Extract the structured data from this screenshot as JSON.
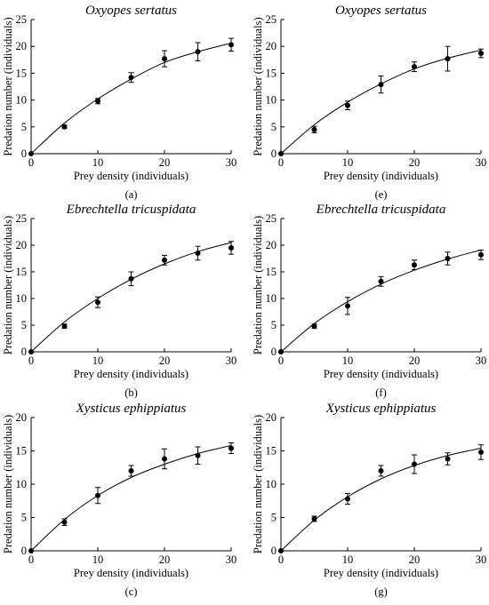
{
  "chart_data": [
    {
      "type": "scatter",
      "panel": "(a)",
      "title": "Oxyopes sertatus",
      "xlabel": "Prey density (individuals)",
      "ylabel": "Predation number (individuals)",
      "xlim": [
        0,
        30
      ],
      "ylim": [
        0,
        25
      ],
      "xticks": [
        0,
        10,
        20,
        30
      ],
      "yticks": [
        0,
        5,
        10,
        15,
        20,
        25
      ],
      "x": [
        0,
        5,
        10,
        15,
        20,
        25,
        30
      ],
      "y": [
        0,
        5.0,
        9.8,
        14.2,
        17.7,
        19.0,
        20.3
      ],
      "err": [
        0,
        0.3,
        0.5,
        0.9,
        1.5,
        1.7,
        1.2
      ],
      "fit": [
        0.0,
        5.7,
        10.2,
        13.9,
        17.0,
        19.0,
        20.6
      ]
    },
    {
      "type": "scatter",
      "panel": "(e)",
      "title": "Oxyopes sertatus",
      "xlabel": "Prey density (individuals)",
      "ylabel": "Predation number (individuals)",
      "xlim": [
        0,
        30
      ],
      "ylim": [
        0,
        25
      ],
      "xticks": [
        0,
        10,
        20,
        30
      ],
      "yticks": [
        0,
        5,
        10,
        15,
        20,
        25
      ],
      "x": [
        0,
        5,
        10,
        15,
        20,
        25,
        30
      ],
      "y": [
        0,
        4.5,
        9.0,
        12.9,
        16.2,
        17.7,
        18.7
      ],
      "err": [
        0,
        0.6,
        0.8,
        1.6,
        0.9,
        2.3,
        0.8
      ],
      "fit": [
        0.0,
        5.4,
        9.6,
        13.0,
        15.8,
        17.8,
        19.3
      ]
    },
    {
      "type": "scatter",
      "panel": "(b)",
      "title": "Ebrechtella tricuspidata",
      "xlabel": "Prey density (individuals)",
      "ylabel": "Predation number (individuals)",
      "xlim": [
        0,
        30
      ],
      "ylim": [
        0,
        25
      ],
      "xticks": [
        0,
        10,
        20,
        30
      ],
      "yticks": [
        0,
        5,
        10,
        15,
        20,
        25
      ],
      "x": [
        0,
        5,
        10,
        15,
        20,
        25,
        30
      ],
      "y": [
        0,
        4.8,
        9.3,
        13.7,
        17.2,
        18.5,
        19.5
      ],
      "err": [
        0,
        0.4,
        1.0,
        1.3,
        0.9,
        1.3,
        1.2
      ],
      "fit": [
        0.0,
        5.6,
        10.0,
        13.6,
        16.5,
        18.8,
        20.5
      ]
    },
    {
      "type": "scatter",
      "panel": "(f)",
      "title": "Ebrechtella tricuspidata",
      "xlabel": "Prey density (individuals)",
      "ylabel": "Predation number (individuals)",
      "xlim": [
        0,
        30
      ],
      "ylim": [
        0,
        25
      ],
      "xticks": [
        0,
        10,
        20,
        30
      ],
      "yticks": [
        0,
        5,
        10,
        15,
        20,
        25
      ],
      "x": [
        0,
        5,
        10,
        15,
        20,
        25,
        30
      ],
      "y": [
        0,
        4.8,
        8.6,
        13.2,
        16.3,
        17.5,
        18.2
      ],
      "err": [
        0,
        0.4,
        1.6,
        0.9,
        0.9,
        1.2,
        0.9
      ],
      "fit": [
        0.0,
        5.3,
        9.4,
        12.7,
        15.3,
        17.4,
        19.1
      ]
    },
    {
      "type": "scatter",
      "panel": "(c)",
      "title": "Xysticus ephippiatus",
      "xlabel": "Prey density (individuals)",
      "ylabel": "Predation number (individuals)",
      "xlim": [
        0,
        30
      ],
      "ylim": [
        0,
        20
      ],
      "xticks": [
        0,
        10,
        20,
        30
      ],
      "yticks": [
        0,
        5,
        10,
        15,
        20
      ],
      "x": [
        0,
        5,
        10,
        15,
        20,
        25,
        30
      ],
      "y": [
        0,
        4.3,
        8.3,
        12.0,
        13.8,
        14.3,
        15.4
      ],
      "err": [
        0,
        0.5,
        1.2,
        0.8,
        1.5,
        1.3,
        0.8
      ],
      "fit": [
        0.0,
        4.7,
        8.3,
        11.0,
        13.0,
        14.6,
        15.8
      ]
    },
    {
      "type": "scatter",
      "panel": "(g)",
      "title": "Xysticus ephippiatus",
      "xlabel": "Prey density (individuals)",
      "ylabel": "Predation number (individuals)",
      "xlim": [
        0,
        30
      ],
      "ylim": [
        0,
        20
      ],
      "xticks": [
        0,
        10,
        20,
        30
      ],
      "yticks": [
        0,
        5,
        10,
        15,
        20
      ],
      "x": [
        0,
        5,
        10,
        15,
        20,
        25,
        30
      ],
      "y": [
        0,
        4.8,
        7.8,
        12.0,
        13.0,
        13.8,
        14.8
      ],
      "err": [
        0,
        0.4,
        0.8,
        0.8,
        1.4,
        0.9,
        1.1
      ],
      "fit": [
        0.0,
        4.6,
        8.1,
        10.8,
        12.8,
        14.3,
        15.4
      ]
    }
  ]
}
